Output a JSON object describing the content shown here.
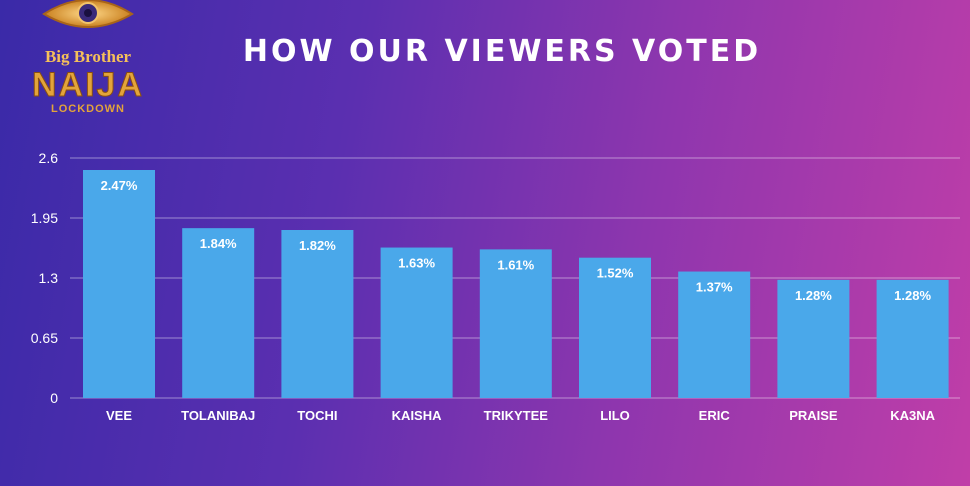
{
  "logo": {
    "line1": "Big Brother",
    "line2": "NAIJA",
    "line3": "LOCKDOWN",
    "icon": "eye-icon"
  },
  "colors": {
    "bar": "#4aa8ea",
    "grid": "rgba(255,255,255,0.45)",
    "text": "#ffffff",
    "logo_gold": "#e3a43a"
  },
  "chart_data": {
    "type": "bar",
    "title": "HOW OUR VIEWERS VOTED",
    "xlabel": "",
    "ylabel": "",
    "categories": [
      "VEE",
      "TOLANIBAJ",
      "TOCHI",
      "KAISHA",
      "TRIKYTEE",
      "LILO",
      "ERIC",
      "PRAISE",
      "KA3NA"
    ],
    "values": [
      2.47,
      1.84,
      1.82,
      1.63,
      1.61,
      1.52,
      1.37,
      1.28,
      1.28
    ],
    "data_labels": [
      "2.47%",
      "1.84%",
      "1.82%",
      "1.63%",
      "1.61%",
      "1.52%",
      "1.37%",
      "1.28%",
      "1.28%"
    ],
    "yticks": [
      0,
      0.65,
      1.3,
      1.95,
      2.6
    ],
    "ytick_labels": [
      "0",
      "0.65",
      "1.3",
      "1.95",
      "2.6"
    ],
    "ylim": [
      0,
      2.6
    ],
    "grid": true,
    "legend": "none"
  }
}
